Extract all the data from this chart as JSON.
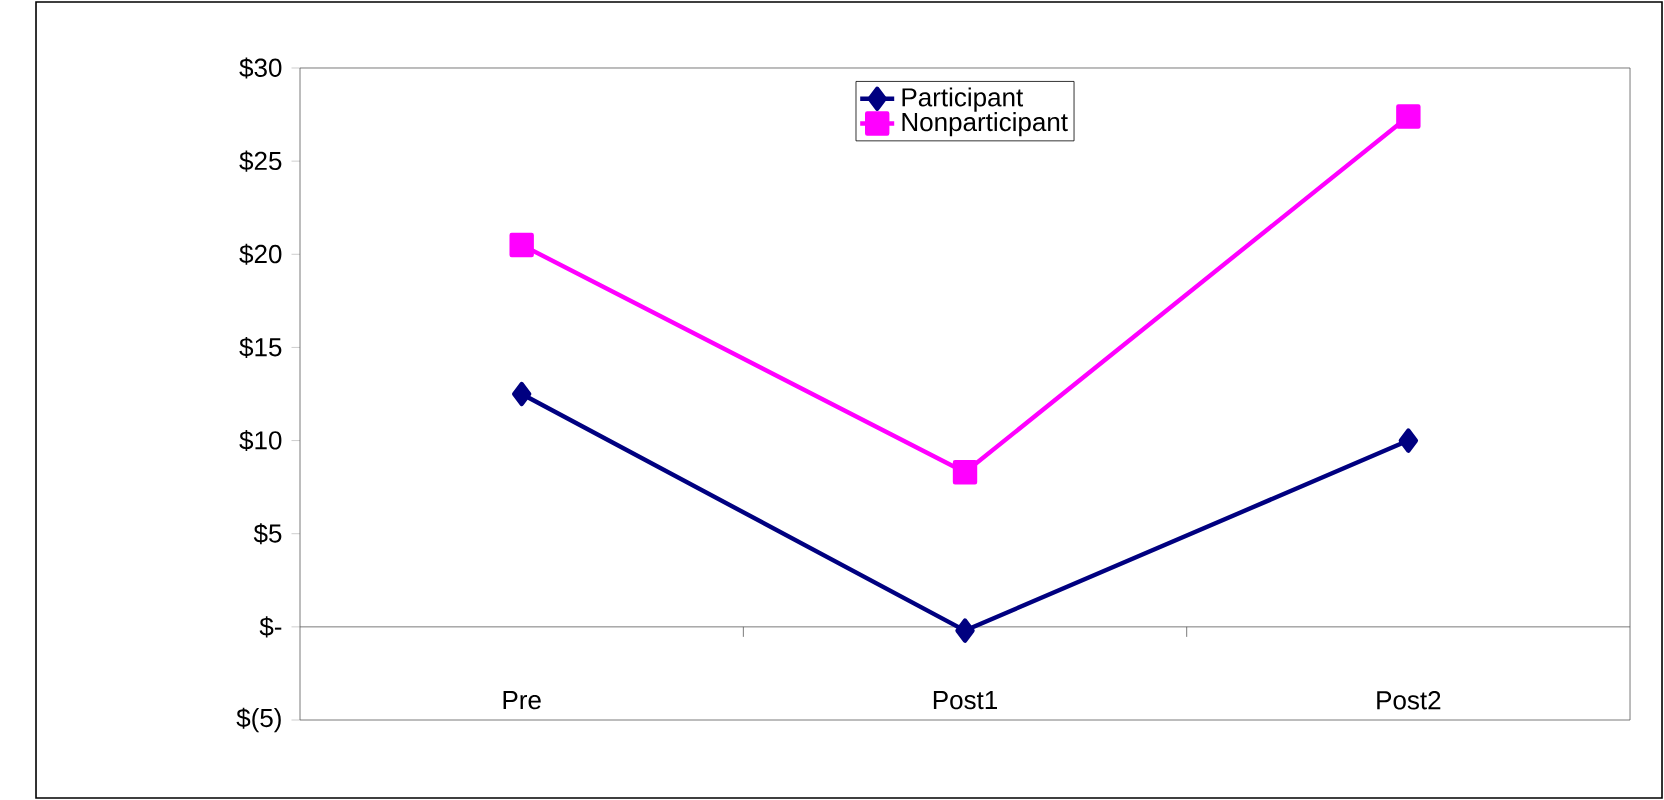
{
  "chart_data": {
    "type": "line",
    "categories": [
      "Pre",
      "Post1",
      "Post2"
    ],
    "series": [
      {
        "name": "Participant",
        "color": "#000080",
        "marker": "diamond",
        "values": [
          12.5,
          -0.2,
          10.0
        ]
      },
      {
        "name": "Nonparticipant",
        "color": "#ff00ff",
        "marker": "square",
        "values": [
          20.5,
          8.3,
          27.4
        ]
      }
    ],
    "ylim": [
      -5,
      30
    ],
    "yticks": [
      {
        "value": -5,
        "label": "$(5)"
      },
      {
        "value": 0,
        "label": "$-"
      },
      {
        "value": 5,
        "label": "$5"
      },
      {
        "value": 10,
        "label": "$10"
      },
      {
        "value": 15,
        "label": "$15"
      },
      {
        "value": 20,
        "label": "$20"
      },
      {
        "value": 25,
        "label": "$25"
      },
      {
        "value": 30,
        "label": "$30"
      }
    ],
    "legend": "top"
  }
}
